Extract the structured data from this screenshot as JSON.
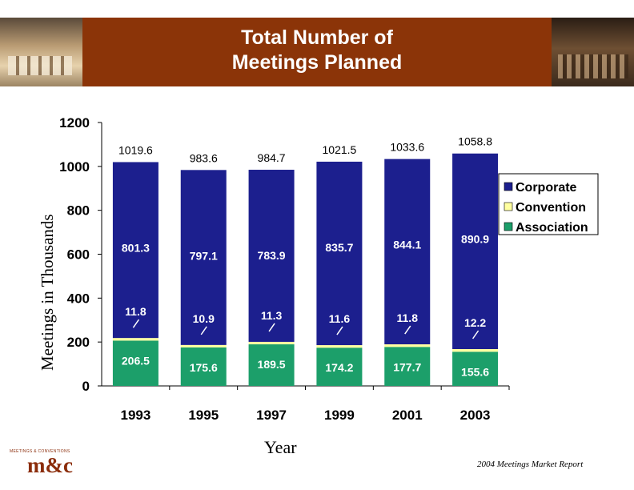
{
  "header": {
    "title_line1": "Total Number of",
    "title_line2": "Meetings Planned"
  },
  "footer_text": "2004 Meetings Market Report",
  "logo": {
    "tagline": "MEETINGS & CONVENTIONS",
    "mark": "m&c"
  },
  "colors": {
    "corporate": "#1c1f8e",
    "convention": "#ffffa0",
    "association": "#1c9f6a",
    "banner": "#8b3408"
  },
  "chart_data": {
    "type": "bar",
    "stacked": true,
    "title": "Total Number of Meetings Planned",
    "xlabel": "Year",
    "ylabel": "Meetings in Thousands",
    "ylim": [
      0,
      1200
    ],
    "yticks": [
      "0",
      "200",
      "400",
      "600",
      "800",
      "1000",
      "1200"
    ],
    "categories": [
      "1993",
      "1995",
      "1997",
      "1999",
      "2001",
      "2003"
    ],
    "totals": [
      "1019.6",
      "983.6",
      "984.7",
      "1021.5",
      "1033.6",
      "1058.8"
    ],
    "series": [
      {
        "name": "Association",
        "values": [
          206.5,
          175.6,
          189.5,
          174.2,
          177.7,
          155.6
        ]
      },
      {
        "name": "Convention",
        "values": [
          11.8,
          10.9,
          11.3,
          11.6,
          11.8,
          12.2
        ]
      },
      {
        "name": "Corporate",
        "values": [
          801.3,
          797.1,
          783.9,
          835.7,
          844.1,
          890.9
        ]
      }
    ],
    "legend": [
      "Corporate",
      "Convention",
      "Association"
    ],
    "legend_position": "right",
    "grid": false
  }
}
